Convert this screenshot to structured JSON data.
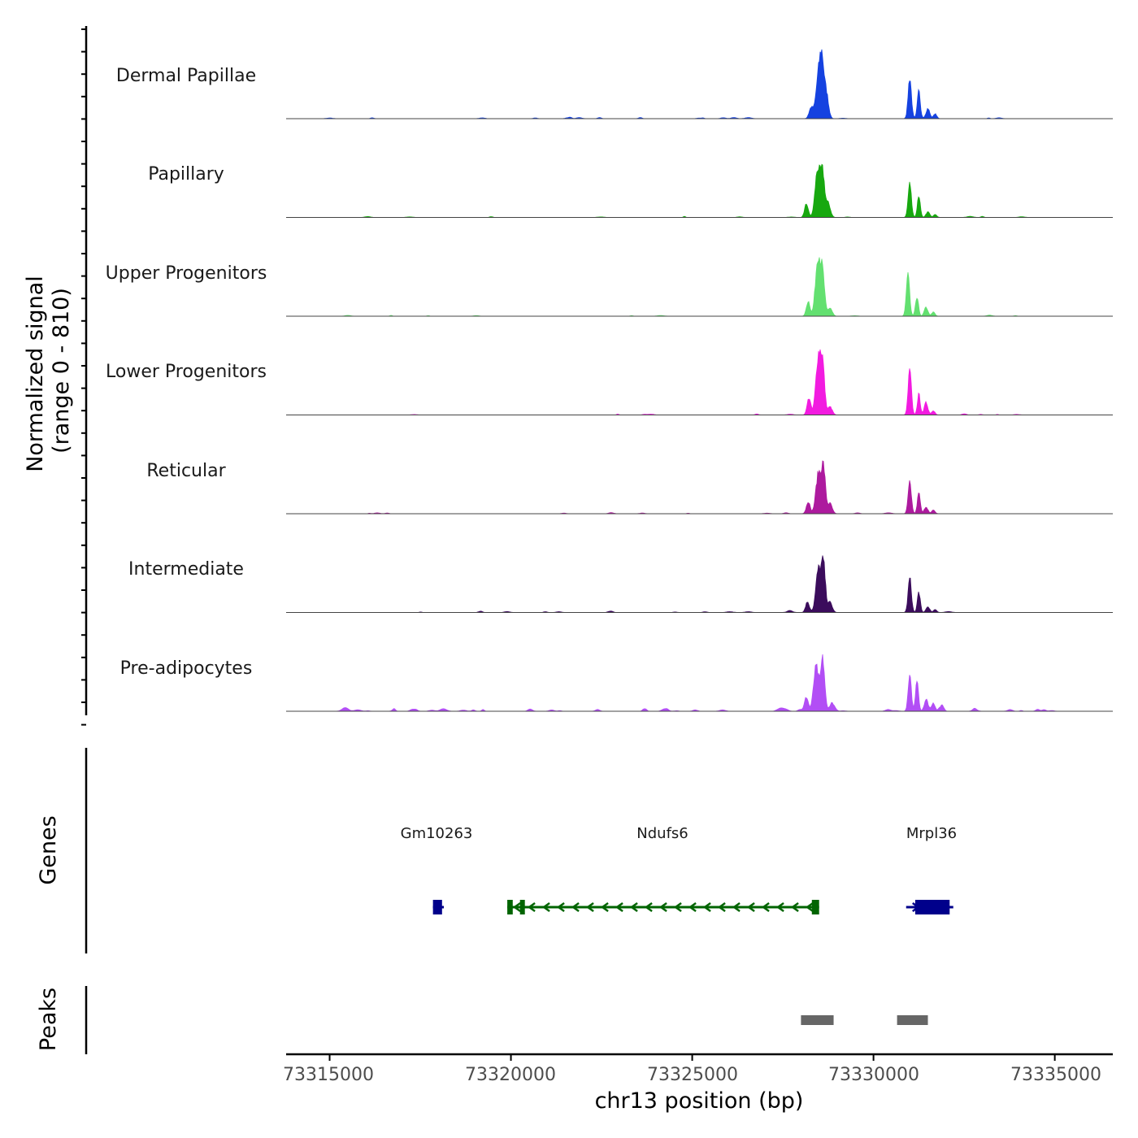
{
  "chart_data": {
    "type": "area",
    "title": "",
    "signal_axis_label": [
      "Normalized signal",
      "(range 0 - 810)"
    ],
    "signal_range": [
      0,
      810
    ],
    "xlabel": "chr13 position (bp)",
    "xlim": [
      73313800,
      73336600
    ],
    "x_ticks": [
      73315000,
      73320000,
      73325000,
      73330000,
      73335000
    ],
    "x_tick_labels": [
      "73315000",
      "73320000",
      "73325000",
      "73330000",
      "73335000"
    ],
    "tracks": [
      {
        "name": "Dermal Papillae",
        "color": "#1542e0",
        "stroke": "#1f3fa8",
        "peak_scale": 1.0,
        "noise": 0.35,
        "peaks": [
          [
            73328280,
            55,
            0.16
          ],
          [
            73328480,
            70,
            0.6
          ],
          [
            73328580,
            55,
            0.72
          ],
          [
            73328700,
            60,
            0.35
          ],
          [
            73331000,
            45,
            0.6
          ],
          [
            73331250,
            40,
            0.4
          ],
          [
            73331500,
            50,
            0.15
          ],
          [
            73331700,
            45,
            0.07
          ]
        ]
      },
      {
        "name": "Papillary",
        "color": "#17a80f",
        "stroke": "#1a7a14",
        "peak_scale": 1.0,
        "noise": 0.15,
        "peaks": [
          [
            73328150,
            50,
            0.2
          ],
          [
            73328460,
            70,
            0.7
          ],
          [
            73328600,
            55,
            0.6
          ],
          [
            73328750,
            60,
            0.2
          ],
          [
            73331000,
            45,
            0.5
          ],
          [
            73331250,
            40,
            0.32
          ],
          [
            73331500,
            50,
            0.08
          ],
          [
            73331700,
            45,
            0.04
          ]
        ]
      },
      {
        "name": "Upper Progenitors",
        "color": "#63e070",
        "stroke": "#3fb34c",
        "peak_scale": 1.0,
        "noise": 0.12,
        "peaks": [
          [
            73328200,
            50,
            0.22
          ],
          [
            73328470,
            70,
            0.85
          ],
          [
            73328600,
            55,
            0.55
          ],
          [
            73328800,
            60,
            0.12
          ],
          [
            73330950,
            45,
            0.6
          ],
          [
            73331200,
            40,
            0.28
          ],
          [
            73331450,
            50,
            0.13
          ],
          [
            73331650,
            45,
            0.06
          ]
        ]
      },
      {
        "name": "Lower Progenitors",
        "color": "#f21be0",
        "stroke": "#c015b3",
        "peak_scale": 1.0,
        "noise": 0.15,
        "peaks": [
          [
            73328220,
            50,
            0.25
          ],
          [
            73328480,
            70,
            0.85
          ],
          [
            73328600,
            55,
            0.65
          ],
          [
            73328800,
            60,
            0.12
          ],
          [
            73331000,
            45,
            0.65
          ],
          [
            73331250,
            40,
            0.3
          ],
          [
            73331450,
            50,
            0.17
          ],
          [
            73331650,
            45,
            0.06
          ]
        ]
      },
      {
        "name": "Reticular",
        "color": "#ad1a9e",
        "stroke": "#8c1480",
        "peak_scale": 1.0,
        "noise": 0.12,
        "peaks": [
          [
            73328200,
            50,
            0.18
          ],
          [
            73328480,
            70,
            0.58
          ],
          [
            73328620,
            55,
            0.65
          ],
          [
            73328800,
            60,
            0.15
          ],
          [
            73331000,
            45,
            0.45
          ],
          [
            73331250,
            40,
            0.3
          ],
          [
            73331450,
            50,
            0.1
          ],
          [
            73331650,
            45,
            0.05
          ]
        ]
      },
      {
        "name": "Intermediate",
        "color": "#3b0c5c",
        "stroke": "#2f0a4a",
        "peak_scale": 1.0,
        "noise": 0.25,
        "peaks": [
          [
            73328180,
            50,
            0.16
          ],
          [
            73328480,
            70,
            0.62
          ],
          [
            73328620,
            55,
            0.68
          ],
          [
            73328800,
            60,
            0.15
          ],
          [
            73331000,
            45,
            0.5
          ],
          [
            73331250,
            40,
            0.3
          ],
          [
            73331500,
            50,
            0.08
          ],
          [
            73331700,
            45,
            0.04
          ]
        ]
      },
      {
        "name": "Pre-adipocytes",
        "color": "#b24ef5",
        "stroke": "#8f35d0",
        "peak_scale": 1.0,
        "noise": 1.0,
        "peaks": [
          [
            73328150,
            50,
            0.2
          ],
          [
            73328420,
            70,
            0.65
          ],
          [
            73328600,
            55,
            0.75
          ],
          [
            73328850,
            60,
            0.12
          ],
          [
            73331000,
            45,
            0.5
          ],
          [
            73331200,
            40,
            0.48
          ],
          [
            73331450,
            50,
            0.15
          ],
          [
            73331650,
            45,
            0.12
          ],
          [
            73331900,
            45,
            0.08
          ]
        ]
      }
    ],
    "genes_track": {
      "label": "Genes",
      "genes": [
        {
          "name": "Gm10263",
          "color": "#00008b",
          "strand": "+",
          "start": 73317850,
          "end": 73318150,
          "exons": [
            [
              73317850,
              73318100
            ]
          ]
        },
        {
          "name": "Ndufs6",
          "color": "#006400",
          "strand": "-",
          "start": 73319900,
          "end": 73328500,
          "exons": [
            [
              73319900,
              73320050
            ],
            [
              73320250,
              73320350
            ],
            [
              73328300,
              73328500
            ]
          ]
        },
        {
          "name": "Mrpl36",
          "color": "#00008b",
          "strand": "+",
          "start": 73330900,
          "end": 73332200,
          "exons": [
            [
              73331150,
              73332100
            ]
          ]
        }
      ],
      "gene_label_positions": [
        73318000,
        73323900,
        73331200
      ]
    },
    "peaks_track": {
      "label": "Peaks",
      "color": "#666666",
      "regions": [
        [
          73328000,
          73328900
        ],
        [
          73330650,
          73331500
        ]
      ]
    }
  }
}
